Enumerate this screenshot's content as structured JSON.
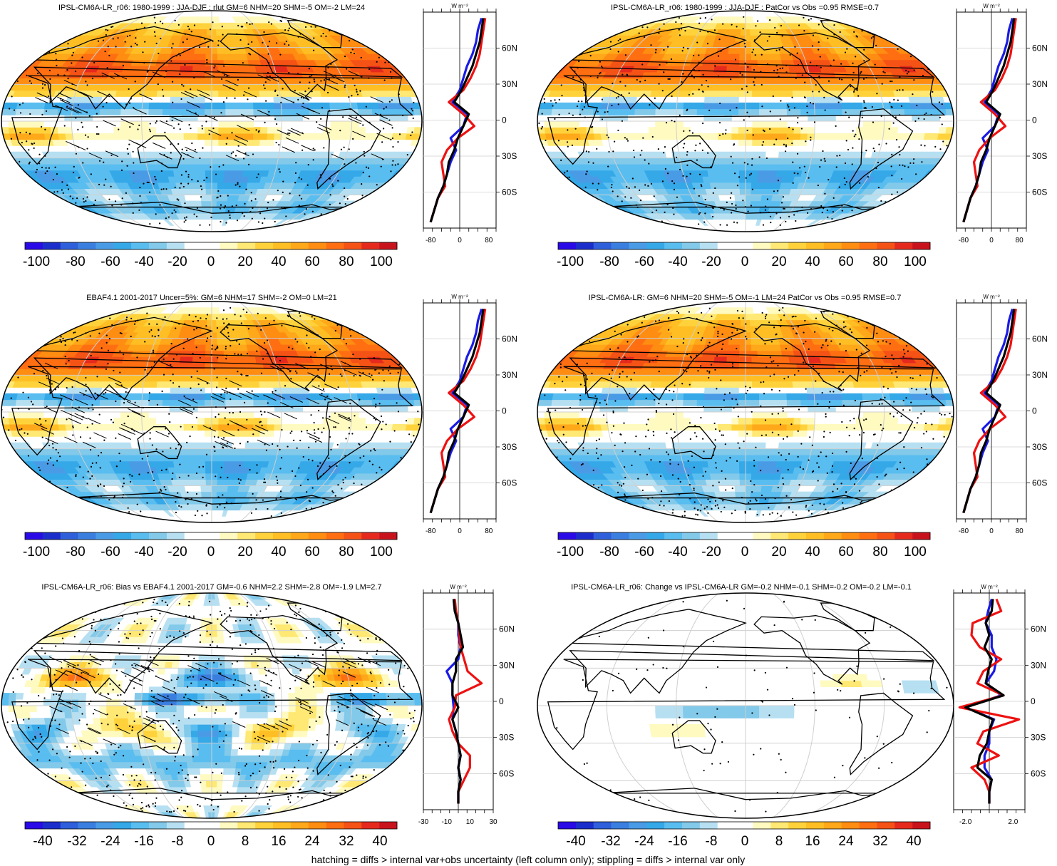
{
  "palette": {
    "neg": [
      "#2a0ae6",
      "#1b2ecb",
      "#2f5fda",
      "#3a7fe0",
      "#4a9be6",
      "#35a8e8",
      "#59bdf0",
      "#82c9ea",
      "#b6e0f2"
    ],
    "pos": [
      "#fffac0",
      "#ffe873",
      "#ffd23c",
      "#ffbf24",
      "#ffa81a",
      "#ff8d12",
      "#ff6f12",
      "#f55216",
      "#e52a1d",
      "#c9131c"
    ],
    "center": "#ffffff"
  },
  "colors": {
    "model": "#000000",
    "obs": "#1a1ae6",
    "change": "#ee1111",
    "grid": "#cfcfcf"
  },
  "profile_unit": "W m⁻²",
  "lat_ticks": [
    "60N",
    "30N",
    "0",
    "30S",
    "60S"
  ],
  "footnote": "hatching = diffs > internal var+obs uncertainty (left column only); stippling = diffs > internal var only",
  "panels": [
    {
      "title": "IPSL-CM6A-LR_r06: 1980-1999 : JJA-DJF : rlut GM=6 NHM=20 SHM=-5 OM=-2 LM=24",
      "cb_labels": [
        "-100",
        "-80",
        "-60",
        "-40",
        "-20",
        "0",
        "20",
        "40",
        "60",
        "80",
        "100"
      ],
      "prof_ticks": [
        "-80",
        "0",
        "80"
      ],
      "prof_range": [
        -100,
        100
      ],
      "hatched": true,
      "kind": "clim"
    },
    {
      "title": "IPSL-CM6A-LR_r06: 1980-1999 : JJA-DJF : PatCor vs Obs =0.95 RMSE=0.7",
      "cb_labels": [
        "-100",
        "-80",
        "-60",
        "-40",
        "-20",
        "0",
        "20",
        "40",
        "60",
        "80",
        "100"
      ],
      "prof_ticks": [
        "-80",
        "0",
        "80"
      ],
      "prof_range": [
        -100,
        100
      ],
      "hatched": false,
      "kind": "clim"
    },
    {
      "title": "EBAF4.1 2001-2017 Uncer=5%: GM=6 NHM=17 SHM=-2 OM=0 LM=21",
      "cb_labels": [
        "-100",
        "-80",
        "-60",
        "-40",
        "-20",
        "0",
        "20",
        "40",
        "60",
        "80",
        "100"
      ],
      "prof_ticks": [
        "-80",
        "0",
        "80"
      ],
      "prof_range": [
        -100,
        100
      ],
      "hatched": true,
      "kind": "clim"
    },
    {
      "title": "IPSL-CM6A-LR: GM=6 NHM=20 SHM=-5 OM=-1 LM=24 PatCor vs Obs =0.95 RMSE=0.7",
      "cb_labels": [
        "-100",
        "-80",
        "-60",
        "-40",
        "-20",
        "0",
        "20",
        "40",
        "60",
        "80",
        "100"
      ],
      "prof_ticks": [
        "-80",
        "0",
        "80"
      ],
      "prof_range": [
        -100,
        100
      ],
      "hatched": false,
      "kind": "clim"
    },
    {
      "title": "IPSL-CM6A-LR_r06: Bias vs EBAF4.1 2001-2017 GM=-0.6 NHM=2.2 SHM=-2.8 OM=-1.9 LM=2.7",
      "cb_labels": [
        "-40",
        "-32",
        "-24",
        "-16",
        "-8",
        "0",
        "8",
        "16",
        "24",
        "32",
        "40"
      ],
      "prof_ticks": [
        "-30",
        "-10",
        "10",
        "30"
      ],
      "prof_range": [
        -30,
        30
      ],
      "hatched": true,
      "kind": "bias"
    },
    {
      "title": "IPSL-CM6A-LR_r06: Change vs IPSL-CM6A-LR GM=-0.2 NHM=-0.1 SHM=-0.2 OM=-0.2 LM=-0.1",
      "cb_labels": [
        "-40",
        "-32",
        "-24",
        "-16",
        "-8",
        "0",
        "8",
        "16",
        "24",
        "32",
        "40"
      ],
      "prof_ticks": [
        "-2.0",
        "2.0"
      ],
      "prof_range": [
        -3,
        3
      ],
      "hatched": false,
      "kind": "change"
    }
  ],
  "chart_data": [
    {
      "type": "line",
      "title": "IPSL-CM6A-LR_r06: 1980-1999 : JJA-DJF : rlut GM=6 NHM=20 SHM=-5 OM=-2 LM=24",
      "ylabel": "W m⁻²",
      "ylim": [
        -90,
        90
      ],
      "xlim": [
        -100,
        100
      ],
      "lat": [
        -85,
        -75,
        -65,
        -55,
        -45,
        -35,
        -25,
        -15,
        -5,
        5,
        15,
        25,
        35,
        45,
        55,
        65,
        75,
        85
      ],
      "series": [
        {
          "name": "model",
          "values": [
            -80,
            -70,
            -60,
            -45,
            -35,
            -30,
            -15,
            -5,
            10,
            25,
            -15,
            5,
            20,
            35,
            45,
            55,
            60,
            65
          ]
        },
        {
          "name": "obs",
          "values": [
            -80,
            -70,
            -60,
            -45,
            -35,
            -25,
            -10,
            -25,
            10,
            20,
            -20,
            0,
            10,
            20,
            35,
            45,
            50,
            60
          ]
        },
        {
          "name": "change",
          "values": [
            -80,
            -70,
            -60,
            -40,
            -45,
            -50,
            -35,
            -5,
            40,
            10,
            -30,
            10,
            30,
            45,
            55,
            60,
            65,
            70
          ]
        }
      ]
    },
    {
      "type": "line",
      "title": "IPSL-CM6A-LR_r06: 1980-1999 : JJA-DJF : PatCor vs Obs =0.95 RMSE=0.7",
      "ylabel": "W m⁻²",
      "ylim": [
        -90,
        90
      ],
      "xlim": [
        -100,
        100
      ],
      "lat": [
        -85,
        -75,
        -65,
        -55,
        -45,
        -35,
        -25,
        -15,
        -5,
        5,
        15,
        25,
        35,
        45,
        55,
        65,
        75,
        85
      ],
      "series": [
        {
          "name": "model",
          "values": [
            -80,
            -70,
            -60,
            -45,
            -35,
            -30,
            -15,
            -5,
            10,
            25,
            -15,
            5,
            20,
            35,
            45,
            55,
            60,
            65
          ]
        },
        {
          "name": "obs",
          "values": [
            -80,
            -70,
            -60,
            -45,
            -35,
            -25,
            -10,
            -25,
            10,
            20,
            -20,
            0,
            10,
            20,
            35,
            45,
            50,
            60
          ]
        },
        {
          "name": "change",
          "values": [
            -80,
            -70,
            -60,
            -40,
            -45,
            -50,
            -35,
            -5,
            40,
            10,
            -30,
            10,
            30,
            45,
            55,
            60,
            65,
            70
          ]
        }
      ]
    },
    {
      "type": "line",
      "title": "EBAF4.1 2001-2017 Uncer=5%: GM=6 NHM=17 SHM=-2 OM=0 LM=21",
      "ylabel": "W m⁻²",
      "ylim": [
        -90,
        90
      ],
      "xlim": [
        -100,
        100
      ],
      "lat": [
        -85,
        -75,
        -65,
        -55,
        -45,
        -35,
        -25,
        -15,
        -5,
        5,
        15,
        25,
        35,
        45,
        55,
        65,
        75,
        85
      ],
      "series": [
        {
          "name": "model",
          "values": [
            -80,
            -70,
            -60,
            -45,
            -35,
            -30,
            -15,
            -5,
            10,
            25,
            -15,
            5,
            20,
            35,
            45,
            55,
            60,
            65
          ]
        },
        {
          "name": "obs",
          "values": [
            -80,
            -70,
            -60,
            -45,
            -35,
            -25,
            -10,
            -25,
            10,
            20,
            -20,
            0,
            10,
            20,
            35,
            45,
            50,
            60
          ]
        },
        {
          "name": "change",
          "values": [
            -80,
            -70,
            -60,
            -40,
            -45,
            -50,
            -35,
            -5,
            40,
            10,
            -30,
            10,
            30,
            45,
            55,
            60,
            65,
            70
          ]
        }
      ]
    },
    {
      "type": "line",
      "title": "IPSL-CM6A-LR: GM=6 NHM=20 SHM=-5 OM=-1 LM=24 PatCor vs Obs =0.95 RMSE=0.7",
      "ylabel": "W m⁻²",
      "ylim": [
        -90,
        90
      ],
      "xlim": [
        -100,
        100
      ],
      "lat": [
        -85,
        -75,
        -65,
        -55,
        -45,
        -35,
        -25,
        -15,
        -5,
        5,
        15,
        25,
        35,
        45,
        55,
        65,
        75,
        85
      ],
      "series": [
        {
          "name": "model",
          "values": [
            -80,
            -70,
            -60,
            -45,
            -35,
            -30,
            -15,
            -5,
            10,
            25,
            -15,
            5,
            20,
            35,
            45,
            55,
            60,
            65
          ]
        },
        {
          "name": "obs",
          "values": [
            -80,
            -70,
            -60,
            -45,
            -35,
            -25,
            -10,
            -25,
            10,
            20,
            -20,
            0,
            10,
            20,
            35,
            45,
            50,
            60
          ]
        },
        {
          "name": "change",
          "values": [
            -80,
            -70,
            -60,
            -40,
            -45,
            -50,
            -35,
            -5,
            40,
            10,
            -30,
            10,
            30,
            45,
            55,
            60,
            65,
            70
          ]
        }
      ]
    },
    {
      "type": "line",
      "title": "IPSL-CM6A-LR_r06: Bias vs EBAF4.1 2001-2017 GM=-0.6 NHM=2.2 SHM=-2.8 OM=-1.9 LM=2.7",
      "ylabel": "W m⁻²",
      "ylim": [
        -90,
        90
      ],
      "xlim": [
        -30,
        30
      ],
      "lat": [
        -85,
        -75,
        -65,
        -55,
        -45,
        -35,
        -25,
        -15,
        -5,
        5,
        15,
        25,
        35,
        45,
        55,
        65,
        75,
        85
      ],
      "series": [
        {
          "name": "model",
          "values": [
            0,
            0,
            2,
            0,
            2,
            0,
            -2,
            -5,
            0,
            -5,
            -5,
            -2,
            -2,
            4,
            2,
            0,
            -3,
            -4
          ]
        },
        {
          "name": "obs",
          "values": [
            0,
            0,
            2,
            0,
            2,
            0,
            -2,
            -5,
            -4,
            -5,
            -5,
            -10,
            0,
            2,
            0,
            0,
            -3,
            -4
          ]
        },
        {
          "name": "change",
          "values": [
            0,
            0,
            5,
            10,
            10,
            0,
            -5,
            -8,
            -3,
            -2,
            20,
            8,
            5,
            2,
            1,
            0,
            -2,
            -3
          ]
        }
      ]
    },
    {
      "type": "line",
      "title": "IPSL-CM6A-LR_r06: Change vs IPSL-CM6A-LR GM=-0.2 NHM=-0.1 SHM=-0.2 OM=-0.2 LM=-0.1",
      "ylabel": "W m⁻²",
      "ylim": [
        -90,
        90
      ],
      "xlim": [
        -3,
        3
      ],
      "lat": [
        -85,
        -75,
        -65,
        -55,
        -45,
        -35,
        -25,
        -15,
        -5,
        5,
        15,
        25,
        35,
        45,
        55,
        65,
        75,
        85
      ],
      "series": [
        {
          "name": "model",
          "values": [
            0,
            0,
            0.2,
            -1,
            -0.8,
            -0.2,
            0,
            0.3,
            -2,
            1.2,
            -0.3,
            -0.1,
            0.2,
            -0.4,
            0,
            -0.3,
            0.2,
            0.3
          ]
        },
        {
          "name": "obs",
          "values": [
            0,
            0,
            0.2,
            -0.4,
            -0.4,
            0,
            0,
            0.4,
            -2,
            1,
            -0.3,
            0.4,
            0.6,
            0.2,
            0.2,
            -0.3,
            -0.1,
            0.2
          ]
        },
        {
          "name": "change",
          "values": [
            0,
            0,
            -0.4,
            -1.5,
            0.8,
            -1,
            -0.5,
            2.5,
            -2.5,
            1.2,
            -1,
            -0.5,
            1,
            -0.8,
            -1.5,
            -1.4,
            1,
            0.6
          ]
        }
      ]
    }
  ]
}
